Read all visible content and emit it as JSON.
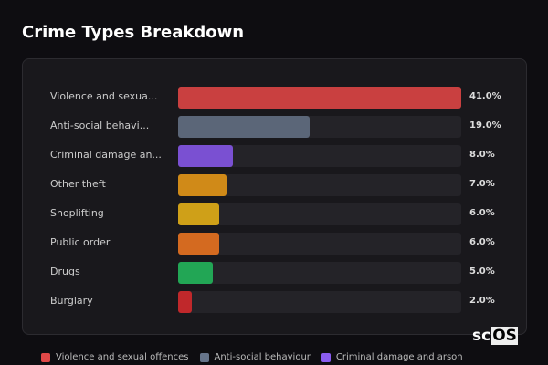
{
  "chart_data": {
    "type": "bar",
    "orientation": "horizontal",
    "title": "Crime Types Breakdown",
    "categories": [
      "Violence and sexua...",
      "Anti-social behavi...",
      "Criminal damage an...",
      "Other theft",
      "Shoplifting",
      "Public order",
      "Drugs",
      "Burglary"
    ],
    "values": [
      41.0,
      19.0,
      8.0,
      7.0,
      6.0,
      6.0,
      5.0,
      2.0
    ],
    "value_labels": [
      "41.0%",
      "19.0%",
      "8.0%",
      "7.0%",
      "6.0%",
      "6.0%",
      "5.0%",
      "2.0%"
    ],
    "colors": [
      "#c94040",
      "#5b6678",
      "#7a50d2",
      "#d08a18",
      "#cfa018",
      "#d46a20",
      "#22a655",
      "#c0282b"
    ],
    "xlim": [
      0,
      41
    ],
    "legend": [
      {
        "label": "Violence and sexual offences",
        "color": "#e04848"
      },
      {
        "label": "Anti-social behaviour",
        "color": "#66748a"
      },
      {
        "label": "Criminal damage and arson",
        "color": "#8a5cf0"
      }
    ]
  },
  "logo": {
    "prefix": "sc",
    "boxed": "OS"
  }
}
